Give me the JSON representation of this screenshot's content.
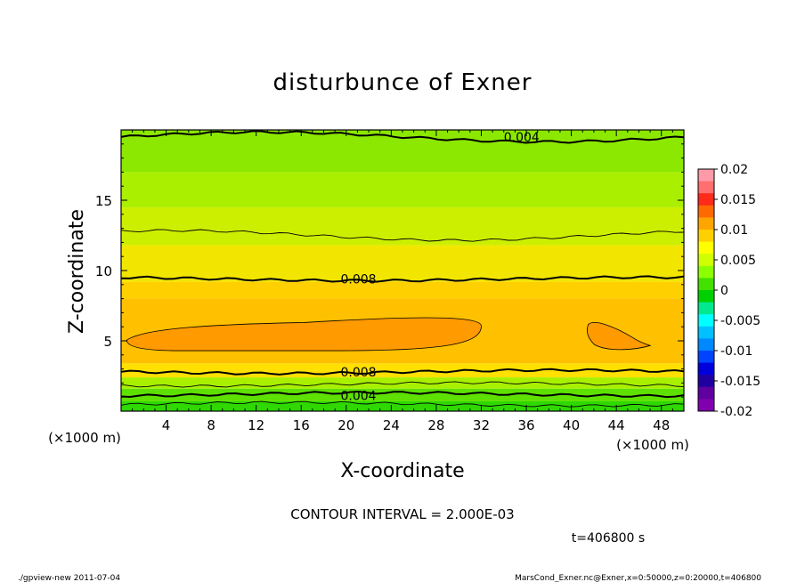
{
  "chart_data": {
    "type": "heatmap",
    "title": "disturbunce of Exner",
    "xlabel": "X-coordinate",
    "ylabel": "Z-coordinate",
    "x_unit_note": "(×1000 m)",
    "xlim": [
      0,
      50
    ],
    "ylim": [
      0,
      20
    ],
    "x_ticks": [
      4,
      8,
      12,
      16,
      20,
      24,
      28,
      32,
      36,
      40,
      44,
      48
    ],
    "y_ticks": [
      5,
      10,
      15
    ],
    "colorbar": {
      "min": -0.02,
      "max": 0.02,
      "labels": [
        "0.02",
        "0.015",
        "0.01",
        "0.005",
        "0",
        "-0.005",
        "-0.01",
        "-0.015",
        "-0.02"
      ],
      "bands": [
        "#ff9aa8",
        "#ff6f6f",
        "#ff2a1a",
        "#ff6a00",
        "#ffa500",
        "#ffd000",
        "#ffff00",
        "#cfff00",
        "#8cff00",
        "#44e000",
        "#00d000",
        "#00e890",
        "#00ffff",
        "#00c0ff",
        "#0088ff",
        "#0044ff",
        "#0000dd",
        "#2000a0",
        "#6000a0",
        "#8000b0"
      ]
    },
    "field_layers": [
      {
        "z_range": [
          0,
          0.7
        ],
        "value": 0.002,
        "color": "#2ed800"
      },
      {
        "z_range": [
          0.7,
          1.6
        ],
        "value": 0.004,
        "color": "#5ee000"
      },
      {
        "z_range": [
          1.6,
          2.4
        ],
        "value": 0.006,
        "color": "#a8f000"
      },
      {
        "z_range": [
          2.4,
          3.4
        ],
        "value": 0.008,
        "color": "#ffe000"
      },
      {
        "z_range": [
          3.4,
          8.0
        ],
        "value": 0.009,
        "color": "#ffc000"
      },
      {
        "z_range": [
          8.0,
          9.2
        ],
        "value": 0.008,
        "color": "#ffd000"
      },
      {
        "z_range": [
          9.2,
          11.8
        ],
        "value": 0.007,
        "color": "#f2e600"
      },
      {
        "z_range": [
          11.8,
          14.5
        ],
        "value": 0.006,
        "color": "#ccef00"
      },
      {
        "z_range": [
          14.5,
          17.0
        ],
        "value": 0.005,
        "color": "#aaee00"
      },
      {
        "z_range": [
          17.0,
          20.0
        ],
        "value": 0.004,
        "color": "#8ce800"
      }
    ],
    "maxima": [
      {
        "value": 0.01,
        "color": "#ff9a00",
        "x": [
          0.5,
          32
        ],
        "z": [
          4.3,
          6.8
        ]
      },
      {
        "value": 0.01,
        "color": "#ff9a00",
        "x": [
          41.5,
          47
        ],
        "z": [
          4.4,
          6.6
        ]
      }
    ],
    "contour_lines": [
      {
        "level": 0.004,
        "z": 19.5,
        "bold": true
      },
      {
        "level": 0.006,
        "z": 12.5,
        "bold": false
      },
      {
        "level": 0.008,
        "z": 9.4,
        "bold": true
      },
      {
        "level": 0.008,
        "z": 2.8,
        "bold": true
      },
      {
        "level": 0.006,
        "z": 1.9,
        "bold": false
      },
      {
        "level": 0.004,
        "z": 1.2,
        "bold": true
      },
      {
        "level": 0.002,
        "z": 0.5,
        "bold": false
      }
    ],
    "contour_labels": [
      {
        "text": "0.004",
        "x": 34,
        "z": 19.5
      },
      {
        "text": "0.008",
        "x": 19.5,
        "z": 9.4
      },
      {
        "text": "0.008",
        "x": 19.5,
        "z": 2.8
      },
      {
        "text": "0.004",
        "x": 19.5,
        "z": 1.1
      }
    ],
    "contour_interval_text": "CONTOUR INTERVAL = 2.000E-03",
    "time_text": "t=406800 s",
    "footer_left": "./gpview-new   2011-07-04",
    "footer_right": "MarsCond_Exner.nc@Exner,x=0:50000,z=0:20000,t=406800"
  }
}
